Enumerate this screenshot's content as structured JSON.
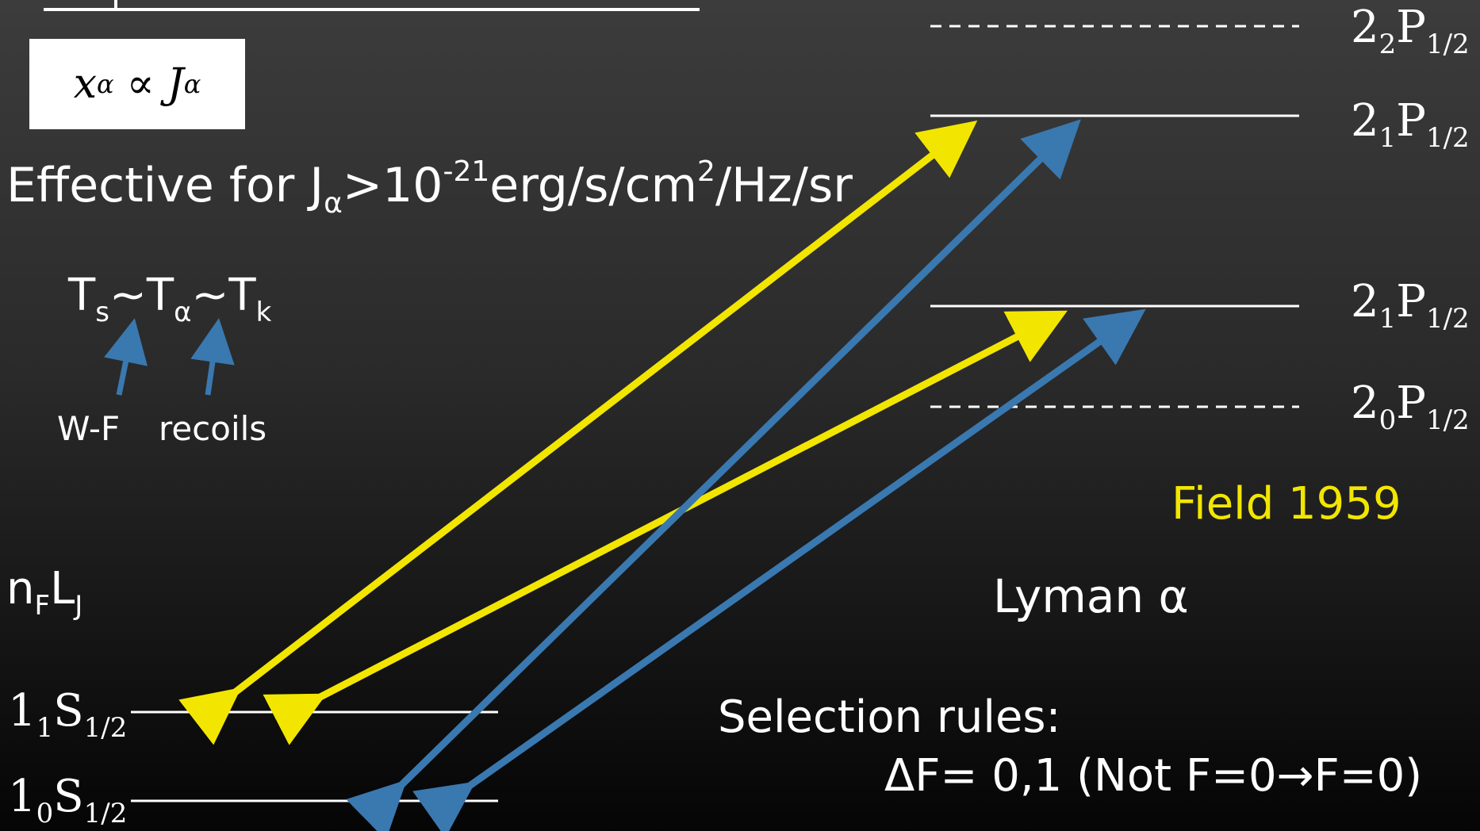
{
  "proportionality": {
    "x": "x",
    "alpha": "α",
    "op": "∝",
    "J": "J"
  },
  "effective": {
    "prefix": "Effective for J",
    "alpha": "α",
    "gt": ">10",
    "exp": "-21",
    "unit": "erg/s/cm",
    "sq": "2",
    "rest": "/Hz/sr"
  },
  "temperatures": {
    "Ts": "T",
    "s": "s",
    "t1": "~T",
    "alpha": "α",
    "t2": "~T",
    "k": "k"
  },
  "annotations": {
    "wf": "W-F",
    "recoils": "recoils"
  },
  "notation": {
    "n": "n",
    "F": "F",
    "L": "L",
    "J": "J"
  },
  "levels": [
    {
      "n": "2",
      "sub": "2",
      "term": "P",
      "j": "1/2",
      "style": "dashed"
    },
    {
      "n": "2",
      "sub": "1",
      "term": "P",
      "j": "1/2",
      "style": "solid"
    },
    {
      "n": "2",
      "sub": "1",
      "term": "P",
      "j": "1/2",
      "style": "solid"
    },
    {
      "n": "2",
      "sub": "0",
      "term": "P",
      "j": "1/2",
      "style": "dashed"
    },
    {
      "n": "1",
      "sub": "1",
      "term": "S",
      "j": "1/2",
      "style": "solid"
    },
    {
      "n": "1",
      "sub": "0",
      "term": "S",
      "j": "1/2",
      "style": "solid"
    }
  ],
  "reference": "Field 1959",
  "lyman": "Lyman α",
  "selection": {
    "title": "Selection rules:",
    "rule": "ΔF= 0,1 (Not F=0→F=0)"
  },
  "colors": {
    "yellow": "#f2e600",
    "blue": "#3a78b0",
    "line": "#ffffff"
  }
}
